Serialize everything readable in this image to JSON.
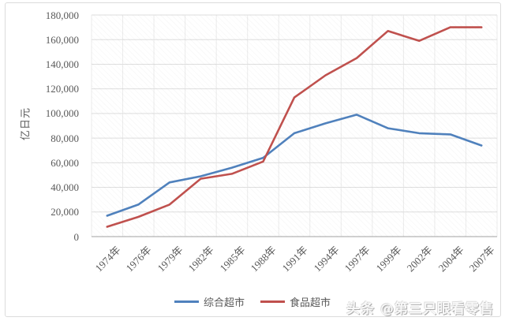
{
  "watermark": "头条 @第三只眼看零售",
  "chart_data": {
    "type": "line",
    "title": "",
    "xlabel": "",
    "ylabel": "亿日元",
    "categories": [
      "1974年",
      "1976年",
      "1979年",
      "1982年",
      "1985年",
      "1988年",
      "1991年",
      "1994年",
      "1997年",
      "1999年",
      "2002年",
      "2004年",
      "2007年"
    ],
    "series": [
      {
        "name": "综合超市",
        "color": "#4F81BD",
        "values": [
          17000,
          26000,
          44000,
          49000,
          56000,
          64000,
          84000,
          92000,
          99000,
          88000,
          84000,
          83000,
          74000
        ]
      },
      {
        "name": "食品超市",
        "color": "#C0504D",
        "values": [
          8000,
          16000,
          26000,
          47000,
          51000,
          61000,
          113000,
          131000,
          145000,
          167000,
          159000,
          170000,
          170000
        ]
      }
    ],
    "ylim": [
      0,
      180000
    ],
    "y_tick_step": 20000,
    "y_tick_labels": [
      "0",
      "20,000",
      "40,000",
      "60,000",
      "80,000",
      "100,000",
      "120,000",
      "140,000",
      "160,000",
      "180,000"
    ],
    "grid": true,
    "legend_position": "bottom",
    "colors": {
      "tick_label": "#595959",
      "gridline_h": "#dedede",
      "gridline_v": "#ebebeb",
      "axis_line": "#b3b3b3"
    }
  }
}
